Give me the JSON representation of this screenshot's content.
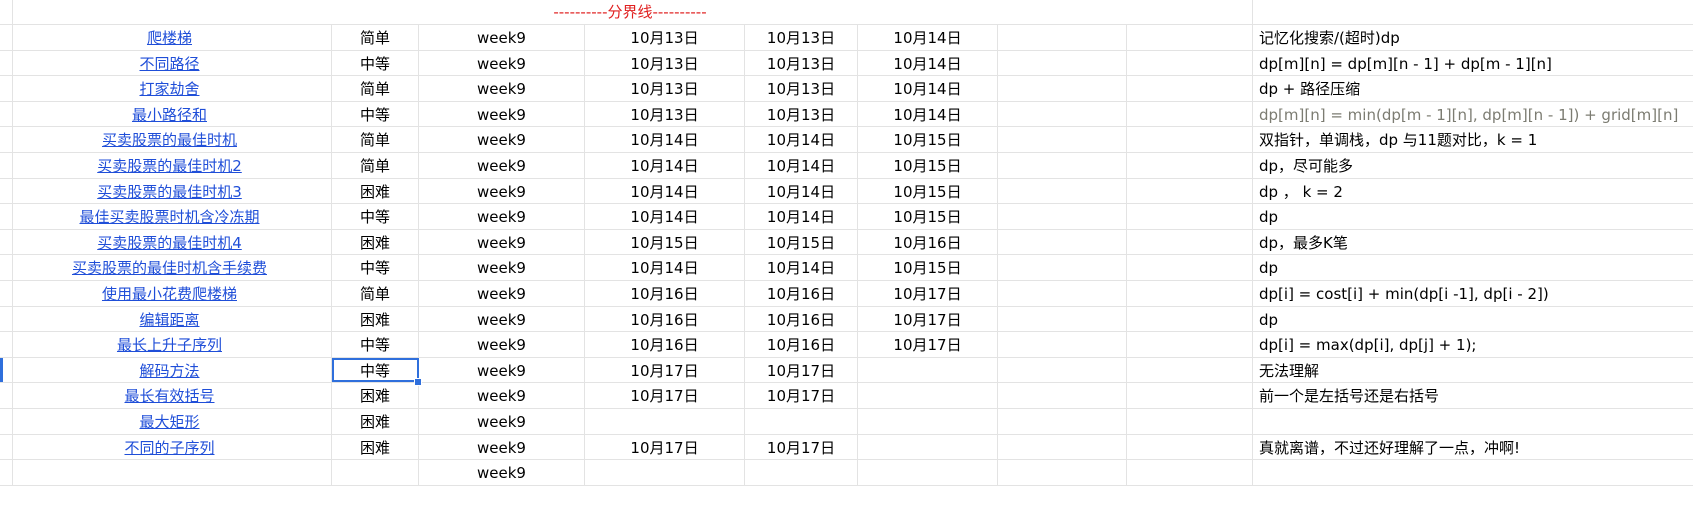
{
  "divider": "----------分界线----------",
  "rows": [
    {
      "title": "爬楼梯",
      "difficulty": "简单",
      "week": "week9",
      "d1": "10月13日",
      "d2": "10月13日",
      "d3": "10月14日",
      "note": "记忆化搜索/(超时)dp"
    },
    {
      "title": "不同路径",
      "difficulty": "中等",
      "week": "week9",
      "d1": "10月13日",
      "d2": "10月13日",
      "d3": "10月14日",
      "note": "dp[m][n] = dp[m][n - 1] + dp[m - 1][n]"
    },
    {
      "title": "打家劫舍",
      "difficulty": "简单",
      "week": "week9",
      "d1": "10月13日",
      "d2": "10月13日",
      "d3": "10月14日",
      "note": "dp + 路径压缩"
    },
    {
      "title": "最小路径和",
      "difficulty": "中等",
      "week": "week9",
      "d1": "10月13日",
      "d2": "10月13日",
      "d3": "10月14日",
      "note": "dp[m][n] = min(dp[m - 1][n], dp[m][n - 1]) + grid[m][n]"
    },
    {
      "title": "买卖股票的最佳时机",
      "difficulty": "简单",
      "week": "week9",
      "d1": "10月14日",
      "d2": "10月14日",
      "d3": "10月15日",
      "note": "双指针，单调栈，dp   与11题对比，k = 1"
    },
    {
      "title": "买卖股票的最佳时机2",
      "difficulty": "简单",
      "week": "week9",
      "d1": "10月14日",
      "d2": "10月14日",
      "d3": "10月15日",
      "note": "dp，尽可能多"
    },
    {
      "title": "买卖股票的最佳时机3",
      "difficulty": "困难",
      "week": "week9",
      "d1": "10月14日",
      "d2": "10月14日",
      "d3": "10月15日",
      "note": "dp ， k = 2"
    },
    {
      "title": "最佳买卖股票时机含冷冻期",
      "difficulty": "中等",
      "week": "week9",
      "d1": "10月14日",
      "d2": "10月14日",
      "d3": "10月15日",
      "note": "dp"
    },
    {
      "title": "买卖股票的最佳时机4",
      "difficulty": "困难",
      "week": "week9",
      "d1": "10月15日",
      "d2": "10月15日",
      "d3": "10月16日",
      "note": "dp，最多K笔"
    },
    {
      "title": "买卖股票的最佳时机含手续费",
      "difficulty": "中等",
      "week": "week9",
      "d1": "10月14日",
      "d2": "10月14日",
      "d3": "10月15日",
      "note": "dp"
    },
    {
      "title": "使用最小花费爬楼梯",
      "difficulty": "简单",
      "week": "week9",
      "d1": "10月16日",
      "d2": "10月16日",
      "d3": "10月17日",
      "note": "dp[i] = cost[i] + min(dp[i -1], dp[i - 2])"
    },
    {
      "title": "编辑距离",
      "difficulty": "困难",
      "week": "week9",
      "d1": "10月16日",
      "d2": "10月16日",
      "d3": "10月17日",
      "note": "dp"
    },
    {
      "title": "最长上升子序列",
      "difficulty": "中等",
      "week": "week9",
      "d1": "10月16日",
      "d2": "10月16日",
      "d3": "10月17日",
      "note": "dp[i] = max(dp[i], dp[j] + 1);"
    },
    {
      "title": "解码方法",
      "difficulty": "中等",
      "week": "week9",
      "d1": "10月17日",
      "d2": "10月17日",
      "d3": "",
      "note": "无法理解"
    },
    {
      "title": "最长有效括号",
      "difficulty": "困难",
      "week": "week9",
      "d1": "10月17日",
      "d2": "10月17日",
      "d3": "",
      "note": "前一个是左括号还是右括号"
    },
    {
      "title": "最大矩形",
      "difficulty": "困难",
      "week": "week9",
      "d1": "",
      "d2": "",
      "d3": "",
      "note": ""
    },
    {
      "title": "不同的子序列",
      "difficulty": "困难",
      "week": "week9",
      "d1": "10月17日",
      "d2": "10月17日",
      "d3": "",
      "note": "真就离谱，不过还好理解了一点，冲啊!"
    },
    {
      "title": "",
      "difficulty": "",
      "week": "week9",
      "d1": "",
      "d2": "",
      "d3": "",
      "note": ""
    }
  ],
  "colors": {
    "link": "#1f4ed8",
    "divider": "#e02020",
    "selection": "#2f6fdc",
    "grid": "#e3e3e3",
    "muted_note": "#7c7c72"
  }
}
